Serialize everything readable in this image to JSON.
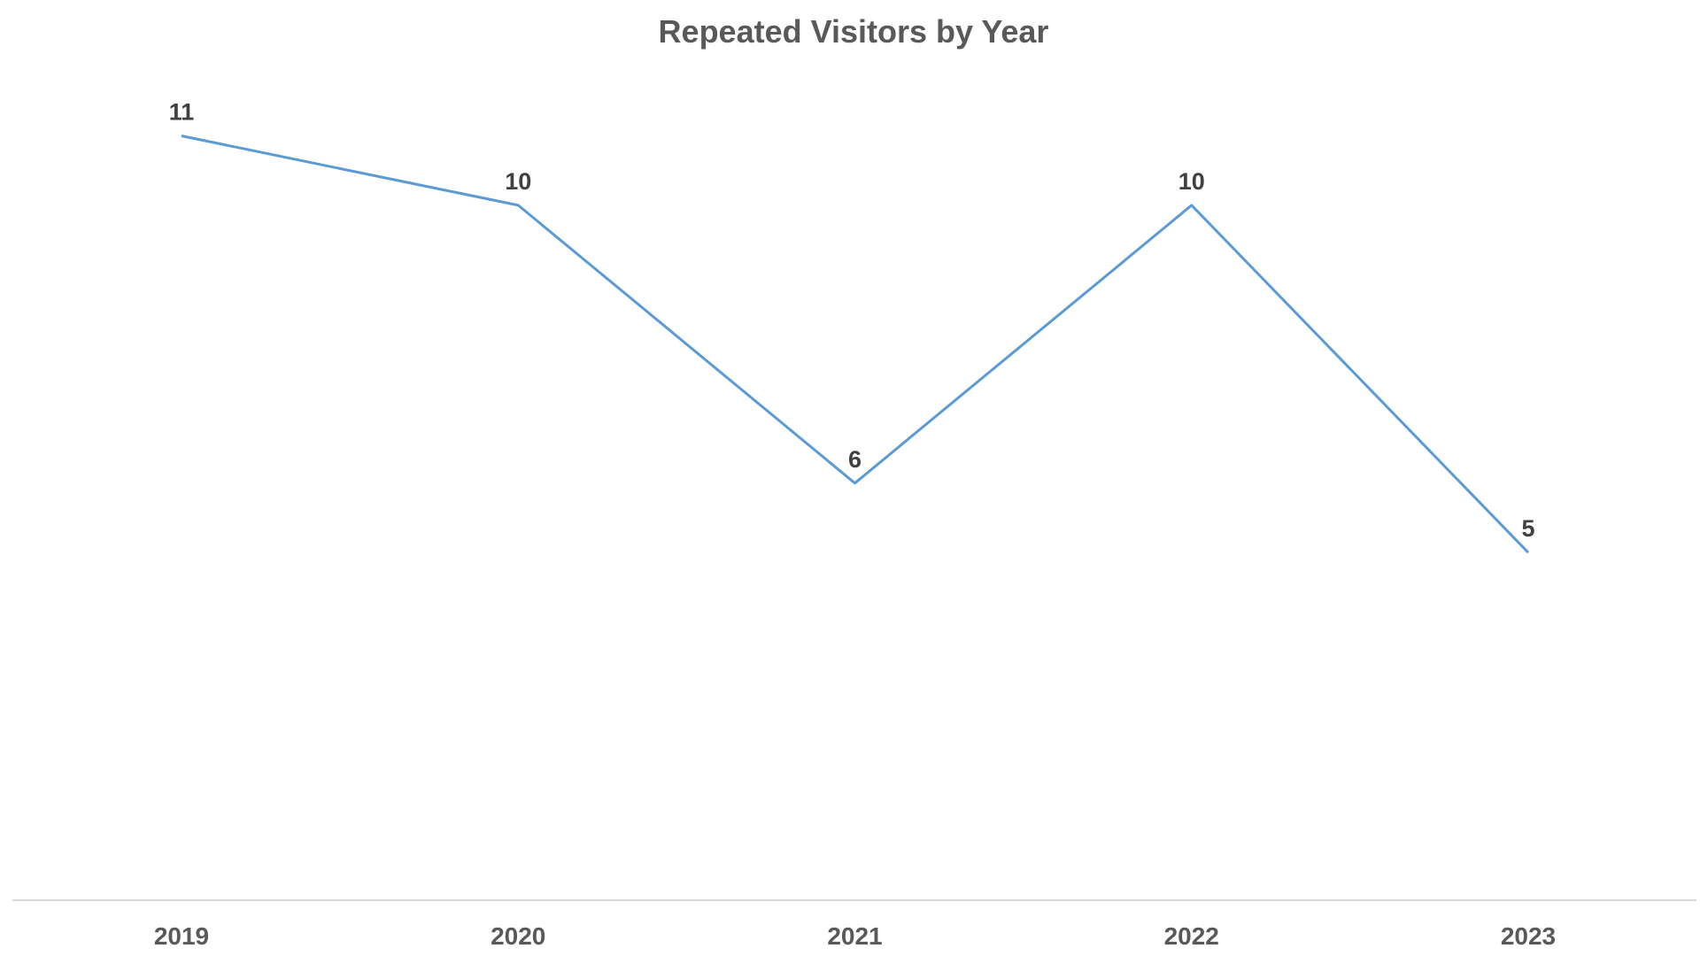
{
  "chart_data": {
    "type": "line",
    "title": "Repeated Visitors by Year",
    "categories": [
      "2019",
      "2020",
      "2021",
      "2022",
      "2023"
    ],
    "series": [
      {
        "values": [
          11,
          10,
          6,
          10,
          5
        ]
      }
    ],
    "data_labels": [
      "11",
      "10",
      "6",
      "10",
      "5"
    ],
    "ylim": [
      -1,
      12
    ],
    "grid": false,
    "legend": "none",
    "colors": {
      "line": "#5b9bd5",
      "axis": "#d9d9d9"
    }
  }
}
